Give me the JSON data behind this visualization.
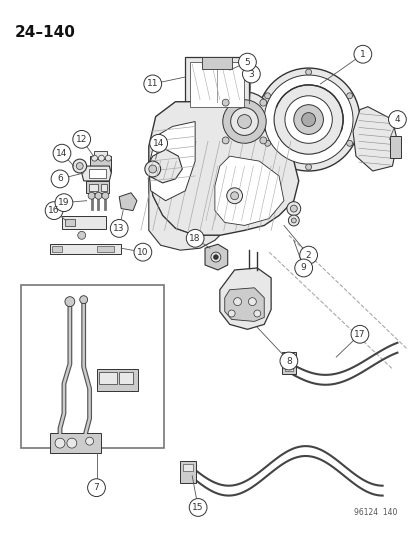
{
  "title": "24–140",
  "watermark": "96124  140",
  "bg_color": "#ffffff",
  "fig_width": 4.14,
  "fig_height": 5.33,
  "dpi": 100,
  "draw_color": "#333333",
  "light_fill": "#e8e8e8",
  "mid_fill": "#cccccc",
  "dark_fill": "#aaaaaa",
  "circle_r": 0.018,
  "label_fontsize": 6.5
}
